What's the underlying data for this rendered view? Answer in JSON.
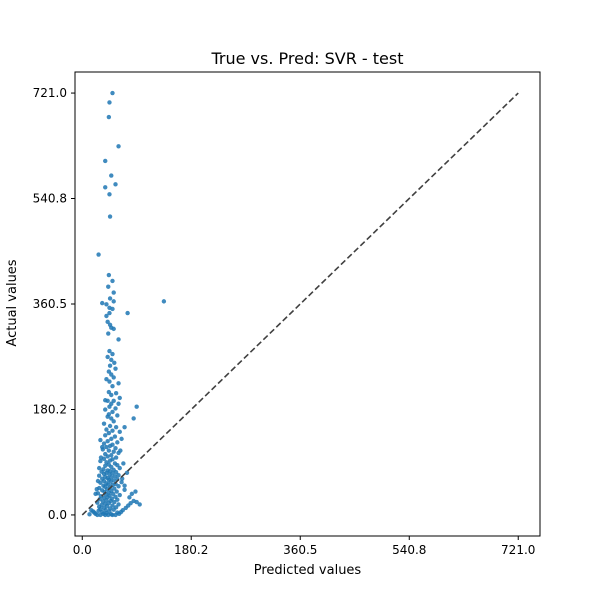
{
  "chart_data": {
    "type": "scatter",
    "title": "True vs. Pred: SVR - test",
    "xlabel": "Predicted values",
    "ylabel": "Actual values",
    "xlim": [
      -12,
      757
    ],
    "ylim": [
      -36,
      757
    ],
    "xticks": [
      0.0,
      180.2,
      360.5,
      540.8,
      721.0
    ],
    "yticks": [
      0.0,
      180.2,
      360.5,
      540.8,
      721.0
    ],
    "xtick_labels": [
      "0.0",
      "180.2",
      "360.5",
      "540.8",
      "721.0"
    ],
    "ytick_labels": [
      "0.0",
      "180.2",
      "360.5",
      "540.8",
      "721.0"
    ],
    "grid": false,
    "reference_line": {
      "style": "dashed",
      "color": "#404040",
      "from": [
        0,
        0
      ],
      "to": [
        721,
        721
      ]
    },
    "series": [
      {
        "color": "#1f77b4",
        "points": [
          [
            50,
            721
          ],
          [
            45,
            705
          ],
          [
            44,
            680
          ],
          [
            60,
            630
          ],
          [
            38,
            605
          ],
          [
            48,
            580
          ],
          [
            38,
            560
          ],
          [
            45,
            548
          ],
          [
            55,
            565
          ],
          [
            46,
            510
          ],
          [
            27,
            445
          ],
          [
            44,
            410
          ],
          [
            43,
            390
          ],
          [
            50,
            400
          ],
          [
            52,
            380
          ],
          [
            46,
            370
          ],
          [
            40,
            360
          ],
          [
            52,
            365
          ],
          [
            135,
            365
          ],
          [
            33,
            362
          ],
          [
            45,
            354
          ],
          [
            50,
            352
          ],
          [
            45,
            345
          ],
          [
            75,
            345
          ],
          [
            40,
            340
          ],
          [
            42,
            330
          ],
          [
            46,
            325
          ],
          [
            48,
            320
          ],
          [
            52,
            318
          ],
          [
            43,
            310
          ],
          [
            60,
            300
          ],
          [
            45,
            280
          ],
          [
            50,
            275
          ],
          [
            42,
            270
          ],
          [
            48,
            265
          ],
          [
            53,
            260
          ],
          [
            46,
            255
          ],
          [
            44,
            245
          ],
          [
            55,
            250
          ],
          [
            48,
            240
          ],
          [
            52,
            235
          ],
          [
            40,
            232
          ],
          [
            45,
            228
          ],
          [
            60,
            225
          ],
          [
            50,
            220
          ],
          [
            44,
            210
          ],
          [
            56,
            208
          ],
          [
            48,
            205
          ],
          [
            62,
            200
          ],
          [
            38,
            196
          ],
          [
            42,
            195
          ],
          [
            52,
            195
          ],
          [
            48,
            190
          ],
          [
            60,
            190
          ],
          [
            45,
            185
          ],
          [
            55,
            182
          ],
          [
            90,
            185
          ],
          [
            38,
            180
          ],
          [
            50,
            176
          ],
          [
            44,
            172
          ],
          [
            58,
            170
          ],
          [
            42,
            168
          ],
          [
            48,
            165
          ],
          [
            85,
            165
          ],
          [
            52,
            160
          ],
          [
            36,
            156
          ],
          [
            46,
            152
          ],
          [
            56,
            150
          ],
          [
            40,
            146
          ],
          [
            50,
            144
          ],
          [
            62,
            142
          ],
          [
            44,
            140
          ],
          [
            38,
            136
          ],
          [
            54,
            134
          ],
          [
            48,
            130
          ],
          [
            30,
            128
          ],
          [
            42,
            126
          ],
          [
            58,
            124
          ],
          [
            36,
            122
          ],
          [
            50,
            120
          ],
          [
            46,
            118
          ],
          [
            40,
            116
          ],
          [
            55,
            114
          ],
          [
            34,
            112
          ],
          [
            44,
            110
          ],
          [
            52,
            108
          ],
          [
            60,
            106
          ],
          [
            38,
            104
          ],
          [
            48,
            102
          ],
          [
            42,
            100
          ],
          [
            56,
            98
          ],
          [
            36,
            96
          ],
          [
            50,
            95
          ],
          [
            46,
            93
          ],
          [
            30,
            92
          ],
          [
            40,
            90
          ],
          [
            54,
            88
          ],
          [
            44,
            86
          ],
          [
            58,
            85
          ],
          [
            38,
            84
          ],
          [
            48,
            82
          ],
          [
            62,
            80
          ],
          [
            35,
            78
          ],
          [
            52,
            77
          ],
          [
            42,
            76
          ],
          [
            46,
            75
          ],
          [
            32,
            74
          ],
          [
            56,
            73
          ],
          [
            40,
            72
          ],
          [
            50,
            71
          ],
          [
            36,
            70
          ],
          [
            45,
            69
          ],
          [
            60,
            68
          ],
          [
            28,
            67
          ],
          [
            54,
            66
          ],
          [
            38,
            65
          ],
          [
            48,
            64
          ],
          [
            42,
            63
          ],
          [
            33,
            62
          ],
          [
            58,
            61
          ],
          [
            44,
            60
          ],
          [
            52,
            59
          ],
          [
            36,
            58
          ],
          [
            47,
            57
          ],
          [
            65,
            56
          ],
          [
            30,
            55
          ],
          [
            40,
            54
          ],
          [
            55,
            53
          ],
          [
            43,
            52
          ],
          [
            50,
            51
          ],
          [
            35,
            50
          ],
          [
            60,
            49
          ],
          [
            38,
            48
          ],
          [
            46,
            47
          ],
          [
            28,
            46
          ],
          [
            53,
            45
          ],
          [
            41,
            44
          ],
          [
            70,
            43
          ],
          [
            33,
            42
          ],
          [
            48,
            41
          ],
          [
            57,
            40
          ],
          [
            37,
            39
          ],
          [
            44,
            38
          ],
          [
            26,
            37
          ],
          [
            51,
            36
          ],
          [
            39,
            35
          ],
          [
            62,
            34
          ],
          [
            45,
            33
          ],
          [
            31,
            32
          ],
          [
            55,
            31
          ],
          [
            42,
            30
          ],
          [
            36,
            29
          ],
          [
            49,
            28
          ],
          [
            29,
            27
          ],
          [
            58,
            26
          ],
          [
            40,
            25
          ],
          [
            47,
            24
          ],
          [
            34,
            23
          ],
          [
            53,
            22
          ],
          [
            25,
            21
          ],
          [
            44,
            20
          ],
          [
            38,
            19
          ],
          [
            60,
            18
          ],
          [
            32,
            17
          ],
          [
            50,
            16
          ],
          [
            41,
            15
          ],
          [
            28,
            14
          ],
          [
            56,
            13
          ],
          [
            36,
            12
          ],
          [
            46,
            11
          ],
          [
            30,
            10
          ],
          [
            52,
            9
          ],
          [
            39,
            8
          ],
          [
            27,
            7
          ],
          [
            45,
            6
          ],
          [
            33,
            5
          ],
          [
            58,
            4
          ],
          [
            40,
            3
          ],
          [
            35,
            2
          ],
          [
            48,
            1
          ],
          [
            43,
            0
          ],
          [
            30,
            0
          ],
          [
            55,
            0
          ],
          [
            22,
            2
          ],
          [
            20,
            4
          ],
          [
            18,
            6
          ],
          [
            15,
            8
          ],
          [
            12,
            1
          ],
          [
            25,
            0
          ],
          [
            38,
            0
          ],
          [
            50,
            0
          ],
          [
            61,
            2
          ],
          [
            64,
            5
          ],
          [
            67,
            8
          ],
          [
            72,
            12
          ],
          [
            76,
            16
          ],
          [
            80,
            20
          ],
          [
            85,
            24
          ],
          [
            90,
            22
          ],
          [
            95,
            18
          ],
          [
            78,
            30
          ],
          [
            82,
            36
          ],
          [
            70,
            50
          ],
          [
            66,
            62
          ],
          [
            88,
            40
          ],
          [
            74,
            72
          ],
          [
            68,
            88
          ],
          [
            63,
            110
          ],
          [
            65,
            130
          ],
          [
            70,
            150
          ],
          [
            24,
            44
          ],
          [
            22,
            36
          ],
          [
            26,
            58
          ],
          [
            28,
            80
          ],
          [
            31,
            98
          ],
          [
            33,
            116
          ]
        ]
      }
    ]
  }
}
